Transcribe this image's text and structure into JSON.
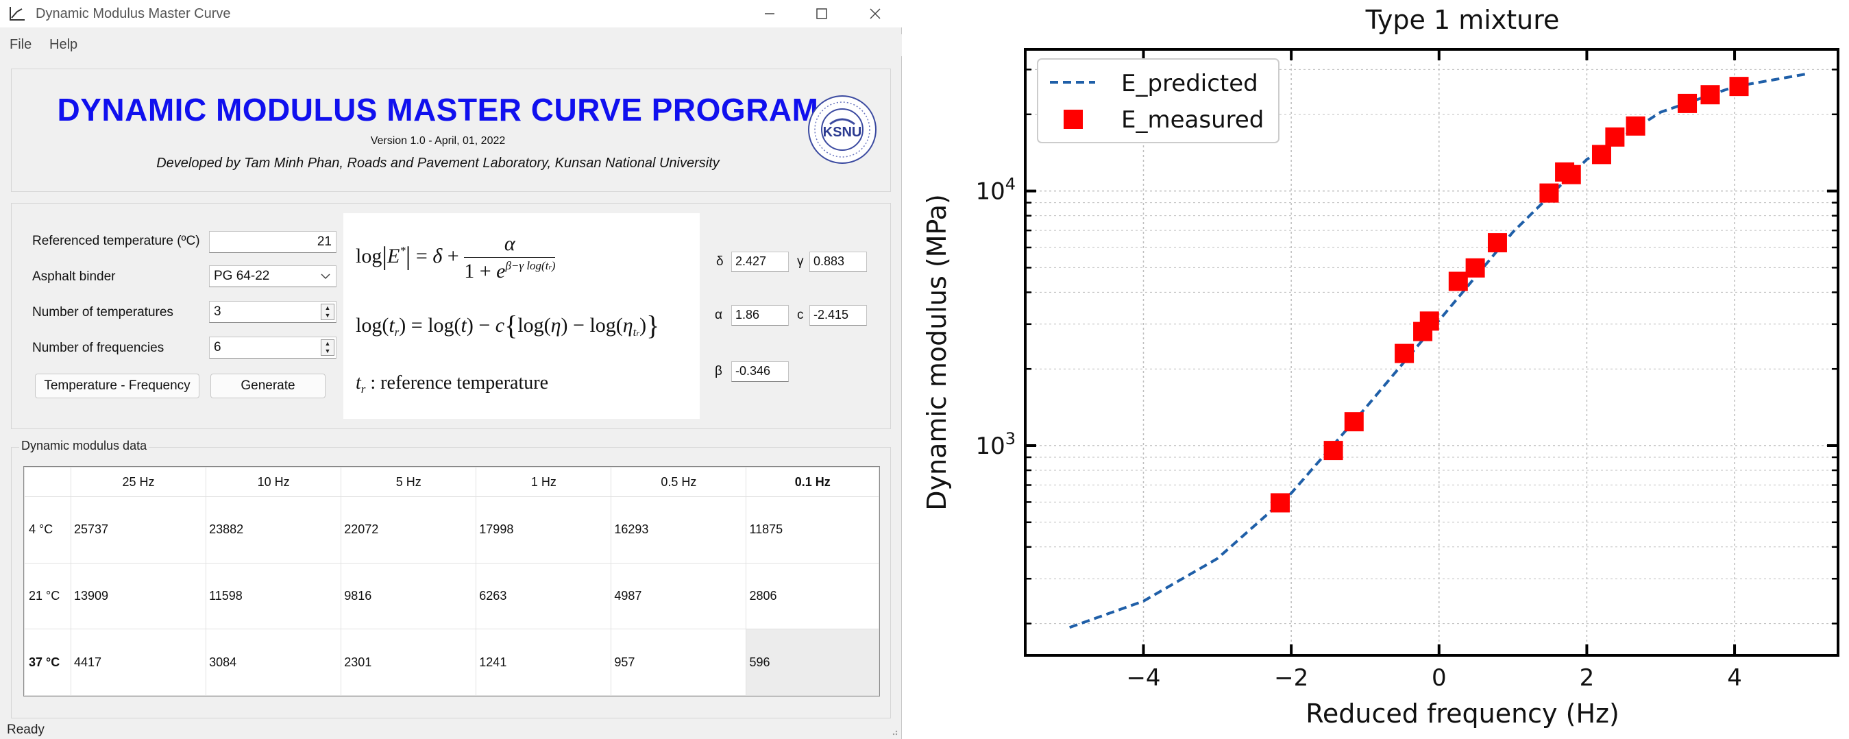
{
  "window": {
    "title": "Dynamic Modulus Master Curve",
    "menu": [
      "File",
      "Help"
    ],
    "status": "Ready"
  },
  "header": {
    "title": "DYNAMIC MODULUS MASTER CURVE PROGRAM",
    "version": "Version 1.0 - April, 01, 2022",
    "developer": "Developed by Tam Minh Phan, Roads and Pavement Laboratory, Kunsan National University",
    "logo_text": "KSNU"
  },
  "params": {
    "ref_temp_label": "Referenced temperature (ºC)",
    "ref_temp_value": "21",
    "binder_label": "Asphalt binder",
    "binder_value": "PG 64-22",
    "num_temps_label": "Number of temperatures",
    "num_temps_value": "3",
    "num_freqs_label": "Number of frequencies",
    "num_freqs_value": "6",
    "btn_temp_freq": "Temperature - Frequency",
    "btn_generate": "Generate"
  },
  "formula": {
    "ref_note": ": reference temperature"
  },
  "coefficients": {
    "delta_label": "δ",
    "delta": "2.427",
    "gamma_label": "γ",
    "gamma": "0.883",
    "alpha_label": "α",
    "alpha": "1.86",
    "c_label": "c",
    "c": "-2.415",
    "beta_label": "β",
    "beta": "-0.346"
  },
  "data_table": {
    "group_title": "Dynamic modulus data",
    "columns": [
      "25 Hz",
      "10 Hz",
      "5 Hz",
      "1 Hz",
      "0.5 Hz",
      "0.1 Hz"
    ],
    "rows": [
      {
        "label": "4 °C",
        "values": [
          "25737",
          "23882",
          "22072",
          "17998",
          "16293",
          "11875"
        ]
      },
      {
        "label": "21 °C",
        "values": [
          "13909",
          "11598",
          "9816",
          "6263",
          "4987",
          "2806"
        ]
      },
      {
        "label": "37 °C",
        "values": [
          "4417",
          "3084",
          "2301",
          "1241",
          "957",
          "596"
        ]
      }
    ]
  },
  "chart_data": {
    "type": "scatter",
    "title": "Type 1 mixture",
    "xlabel": "Reduced frequency (Hz)",
    "ylabel": "Dynamic modulus (MPa)",
    "xlim": [
      -5.6,
      5.4
    ],
    "ylim": [
      150,
      36000
    ],
    "yscale": "log",
    "xticks": [
      -4,
      -2,
      0,
      2,
      4
    ],
    "yticks": [
      1000,
      10000
    ],
    "grid": true,
    "legend": "top-left",
    "series": [
      {
        "name": "E_predicted",
        "style": "dashed-line",
        "color": "#1f5fa8",
        "x": [
          -5,
          -4,
          -3,
          -2,
          -1,
          0,
          1,
          2,
          3,
          4,
          5
        ],
        "y": [
          193,
          245,
          360,
          650,
          1400,
          3100,
          6900,
          13300,
          20400,
          25700,
          28900
        ]
      },
      {
        "name": "E_measured",
        "style": "square-marker",
        "color": "#ff0000",
        "x": [
          -2.15,
          -1.43,
          -1.15,
          -0.47,
          -0.22,
          -0.13,
          0.26,
          0.49,
          0.79,
          1.49,
          1.7,
          1.79,
          2.2,
          2.38,
          2.66,
          3.36,
          3.67,
          4.06
        ],
        "y": [
          596,
          957,
          1241,
          2301,
          2806,
          3084,
          4417,
          4987,
          6263,
          9816,
          11875,
          11598,
          13909,
          16293,
          17998,
          22072,
          23882,
          25737
        ]
      }
    ]
  }
}
